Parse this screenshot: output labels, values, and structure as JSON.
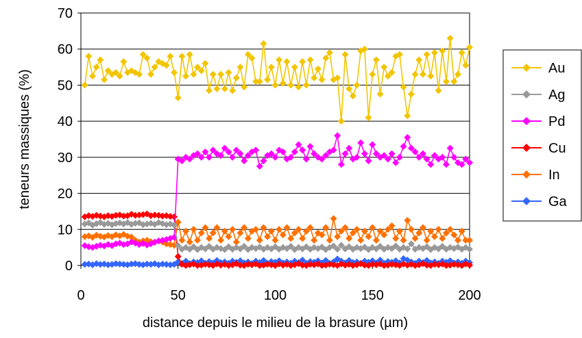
{
  "chart_data": {
    "type": "line",
    "title": "",
    "xlabel": "distance depuis le milieu de la brasure (µm)",
    "ylabel": "teneurs massiques (%)",
    "xlim": [
      0,
      200
    ],
    "ylim": [
      0,
      70
    ],
    "xticks": [
      "0",
      "50",
      "100",
      "150",
      "200"
    ],
    "yticks": [
      "0",
      "10",
      "20",
      "30",
      "40",
      "50",
      "60",
      "70"
    ],
    "grid": "horizontal",
    "legend_position": "right",
    "marker": "diamond",
    "x": [
      2,
      4,
      6,
      8,
      10,
      12,
      14,
      16,
      18,
      20,
      22,
      24,
      26,
      28,
      30,
      32,
      34,
      36,
      38,
      40,
      42,
      44,
      46,
      48,
      50,
      52,
      54,
      56,
      58,
      60,
      62,
      64,
      66,
      68,
      70,
      72,
      74,
      76,
      78,
      80,
      82,
      84,
      86,
      88,
      90,
      92,
      94,
      96,
      98,
      100,
      102,
      104,
      106,
      108,
      110,
      112,
      114,
      116,
      118,
      120,
      122,
      124,
      126,
      128,
      130,
      132,
      134,
      136,
      138,
      140,
      142,
      144,
      146,
      148,
      150,
      152,
      154,
      156,
      158,
      160,
      162,
      164,
      166,
      168,
      170,
      172,
      174,
      176,
      178,
      180,
      182,
      184,
      186,
      188,
      190,
      192,
      194,
      196,
      198,
      200
    ],
    "series": [
      {
        "name": "Au",
        "color": "#f2c500",
        "values": [
          50,
          58,
          52.5,
          55,
          57,
          51.5,
          54,
          53,
          53.5,
          52.5,
          56.5,
          53.5,
          54,
          53.5,
          53,
          58.5,
          57.5,
          53,
          55,
          56.5,
          56,
          55.5,
          58,
          53.5,
          46.5,
          58,
          52.5,
          58.5,
          53,
          55,
          54,
          56,
          48.5,
          53,
          49,
          53,
          49,
          53.5,
          48.5,
          52,
          55,
          49.5,
          58.5,
          57.5,
          51,
          51,
          61.5,
          51.5,
          55,
          50,
          57,
          50.5,
          56.5,
          50,
          55,
          49.5,
          56.5,
          50,
          57,
          52,
          54.5,
          51.5,
          57.5,
          59,
          51.5,
          52,
          40,
          58.5,
          49,
          47,
          50,
          59.5,
          60,
          41,
          53,
          57,
          47.5,
          55,
          52.5,
          53.5,
          58,
          58.5,
          49.5,
          41.5,
          47.5,
          53,
          57,
          53,
          58.5,
          52.5,
          59,
          48.5,
          59.5,
          51,
          63,
          51,
          53,
          59,
          55.5,
          60.5
        ]
      },
      {
        "name": "Ag",
        "color": "#999999",
        "values": [
          11.5,
          11.8,
          11.2,
          11.6,
          11.9,
          11.4,
          11.7,
          11.3,
          11.6,
          11.8,
          11.5,
          11.9,
          11.4,
          11.7,
          11.8,
          11.3,
          11.5,
          11.7,
          11.4,
          11.9,
          11.6,
          11.3,
          11.5,
          11.2,
          5.5,
          4.5,
          5,
          4.5,
          5.2,
          4.4,
          5,
          4.6,
          5.3,
          4.5,
          5,
          4.7,
          4.4,
          5.2,
          4.5,
          5,
          4.6,
          5.3,
          4.4,
          5,
          4.7,
          5.1,
          4.5,
          5,
          4.6,
          5.2,
          4.5,
          5,
          4.7,
          5.3,
          4.4,
          5,
          4.6,
          5.2,
          4.5,
          5,
          4.7,
          5.1,
          4.4,
          5,
          5.4,
          4.5,
          5.6,
          4.6,
          5.2,
          4.5,
          5,
          4.7,
          5.1,
          4.4,
          5,
          4.6,
          5.3,
          4.5,
          5,
          4.7,
          5.4,
          4.5,
          5,
          4.6,
          6,
          4.5,
          5,
          4.7,
          5.2,
          4.4,
          5,
          4.6,
          5.3,
          4.5,
          5,
          4.7,
          5.1,
          4.5,
          5,
          4.5
        ]
      },
      {
        "name": "Pd",
        "color": "#ff00ff",
        "values": [
          5.5,
          5.2,
          5,
          5.3,
          5.6,
          5.4,
          5.8,
          5.5,
          6,
          6.2,
          5.8,
          6,
          6.5,
          6.2,
          5.8,
          6.1,
          5.7,
          6,
          6.5,
          6.8,
          7,
          7.2,
          7.5,
          7.8,
          29.5,
          29,
          30,
          29.5,
          30.5,
          31,
          30,
          31.5,
          30,
          32,
          31,
          30.5,
          32.5,
          31.5,
          30,
          32,
          31,
          29,
          30.5,
          31.5,
          32,
          27.5,
          29,
          30.5,
          31,
          30,
          32,
          31.5,
          29.5,
          30,
          31.5,
          33.5,
          32,
          29.5,
          33,
          31,
          30,
          29.5,
          30.5,
          31.5,
          32,
          36,
          28,
          31,
          32.5,
          29.5,
          30,
          34,
          31,
          29,
          33.5,
          31,
          30,
          30.5,
          29.5,
          31,
          28.5,
          30,
          33,
          35.5,
          32.5,
          31.5,
          30,
          31,
          29.5,
          28,
          30.5,
          29.5,
          30,
          28,
          32.5,
          30,
          28.5,
          28,
          29.5,
          28.5
        ]
      },
      {
        "name": "Cu",
        "color": "#ff0000",
        "values": [
          13.5,
          13.8,
          13.6,
          13.9,
          13.7,
          13.5,
          13.8,
          13.6,
          13.9,
          14,
          13.7,
          13.8,
          14.2,
          13.9,
          14,
          14.1,
          14.3,
          13.8,
          14,
          13.9,
          13.7,
          13.8,
          13.6,
          13.5,
          2.5,
          0.3,
          0,
          0.2,
          0.4,
          0,
          0.1,
          0.3,
          0.2,
          0,
          0.4,
          0.1,
          0.3,
          0,
          0.2,
          0.5,
          0.1,
          0,
          0.3,
          0.2,
          0.4,
          0,
          0.1,
          0.3,
          0.2,
          0,
          0.4,
          0.1,
          0.3,
          0,
          0.2,
          0.5,
          0.1,
          0,
          0.3,
          0.2,
          0.4,
          0,
          0.1,
          0.3,
          0.2,
          0,
          0.4,
          0.1,
          0.3,
          0,
          0.2,
          0.5,
          0.1,
          0,
          0.3,
          0.2,
          0.4,
          0,
          0.1,
          0.3,
          0.2,
          0,
          0.4,
          0.1,
          0.3,
          0,
          0.2,
          0.5,
          0.1,
          0,
          0.3,
          0.2,
          0.4,
          0,
          0.1,
          0.3,
          0.2,
          0,
          0.4,
          0.1
        ]
      },
      {
        "name": "In",
        "color": "#ff7000",
        "values": [
          8,
          8.2,
          7.8,
          8.4,
          8.1,
          7.9,
          8.3,
          8,
          8.5,
          8.2,
          8.6,
          8.1,
          7.9,
          7,
          6.5,
          6.8,
          7,
          6.6,
          6.4,
          6.8,
          6.5,
          6,
          5.8,
          5.6,
          12,
          7,
          9.5,
          6.5,
          10,
          7,
          9,
          10.5,
          7.5,
          9,
          10.5,
          7,
          9.5,
          8,
          10,
          6.5,
          9,
          10.5,
          7.5,
          9.5,
          10,
          7,
          10.5,
          8,
          9.5,
          7,
          10,
          8.5,
          10.5,
          7.5,
          9,
          10,
          7.5,
          9.5,
          10.5,
          7,
          9,
          8.5,
          10.5,
          7,
          13,
          8,
          9.5,
          10.5,
          7.5,
          9,
          10,
          7,
          9.5,
          8,
          10.5,
          7,
          9.5,
          8.5,
          10,
          11,
          7.5,
          9.5,
          7,
          12.5,
          10,
          7.5,
          9,
          10.5,
          7,
          9.5,
          8,
          10,
          7.5,
          9,
          10,
          8.5,
          7,
          9.5,
          7,
          7
        ]
      },
      {
        "name": "Ga",
        "color": "#3366ff",
        "values": [
          0.3,
          0.4,
          0.2,
          0.5,
          0.3,
          0.4,
          0.2,
          0.3,
          0.5,
          0.4,
          0.3,
          0.2,
          0.4,
          0.5,
          0.3,
          0.2,
          0.4,
          0.3,
          0.5,
          0.2,
          0.4,
          0.3,
          0.2,
          0.3,
          1,
          0.6,
          1.2,
          0.5,
          1,
          0.8,
          1.3,
          0.6,
          1.1,
          0.7,
          1.4,
          0.8,
          1,
          0.6,
          1.2,
          0.9,
          1.3,
          0.7,
          1,
          0.5,
          1.2,
          0.8,
          1.4,
          0.6,
          1.1,
          0.9,
          1.3,
          0.7,
          1,
          0.6,
          1.2,
          0.8,
          1.5,
          0.6,
          1.1,
          0.9,
          1.3,
          0.7,
          1.4,
          0.6,
          1,
          1.8,
          1.2,
          0.7,
          1.4,
          0.8,
          1,
          0.6,
          1.2,
          0.9,
          1.3,
          0.7,
          1.5,
          0.6,
          1.1,
          0.9,
          1.3,
          0.7,
          1.9,
          1.5,
          1,
          0.6,
          1.2,
          0.8,
          1.4,
          0.7,
          1,
          0.6,
          1.2,
          0.9,
          1.3,
          0.7,
          1,
          0.6,
          1.2,
          0.8
        ]
      }
    ]
  }
}
